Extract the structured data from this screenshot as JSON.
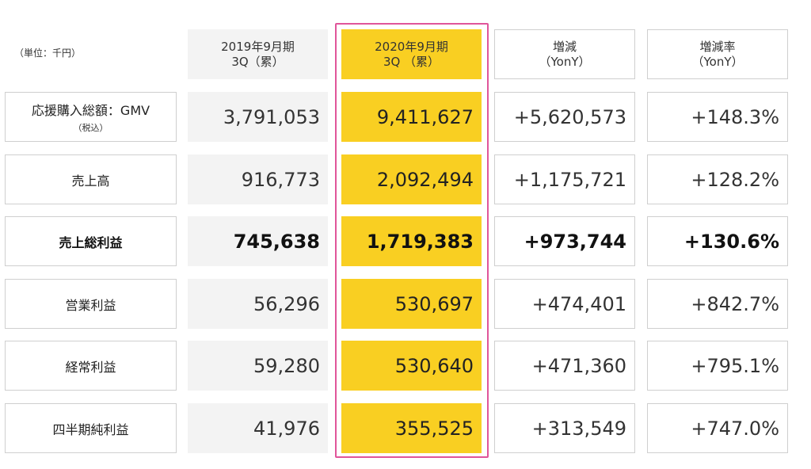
{
  "chart_data": {
    "type": "table",
    "unit": "（単位：千円）",
    "columns": [
      {
        "line1": "2019年9月期",
        "line2": "3Q（累）"
      },
      {
        "line1": "2020年9月期",
        "line2": "3Q （累）"
      },
      {
        "line1": "増減",
        "line2": "（YonY）"
      },
      {
        "line1": "増減率",
        "line2": "（YonY）"
      }
    ],
    "rows": [
      {
        "label": "応援購入総額：GMV",
        "sublabel": "（税込）",
        "prev": "3,791,053",
        "cur": "9,411,627",
        "diff": "+5,620,573",
        "rate": "+148.3%"
      },
      {
        "label": "売上高",
        "sublabel": "",
        "prev": "916,773",
        "cur": "2,092,494",
        "diff": "+1,175,721",
        "rate": "+128.2%"
      },
      {
        "label": "売上総利益",
        "sublabel": "",
        "prev": "745,638",
        "cur": "1,719,383",
        "diff": "+973,744",
        "rate": "+130.6%"
      },
      {
        "label": "営業利益",
        "sublabel": "",
        "prev": "56,296",
        "cur": "530,697",
        "diff": "+474,401",
        "rate": "+842.7%"
      },
      {
        "label": "経常利益",
        "sublabel": "",
        "prev": "59,280",
        "cur": "530,640",
        "diff": "+471,360",
        "rate": "+795.1%"
      },
      {
        "label": "四半期純利益",
        "sublabel": "",
        "prev": "41,976",
        "cur": "355,525",
        "diff": "+313,549",
        "rate": "+747.0%"
      }
    ],
    "bold_row": 2,
    "highlighted_column": 1,
    "colors": {
      "current_period": "#f9cf22",
      "prior_period": "#f3f3f3",
      "highlight_border": "#e0559a",
      "cell_border": "#cfcfcf"
    }
  }
}
